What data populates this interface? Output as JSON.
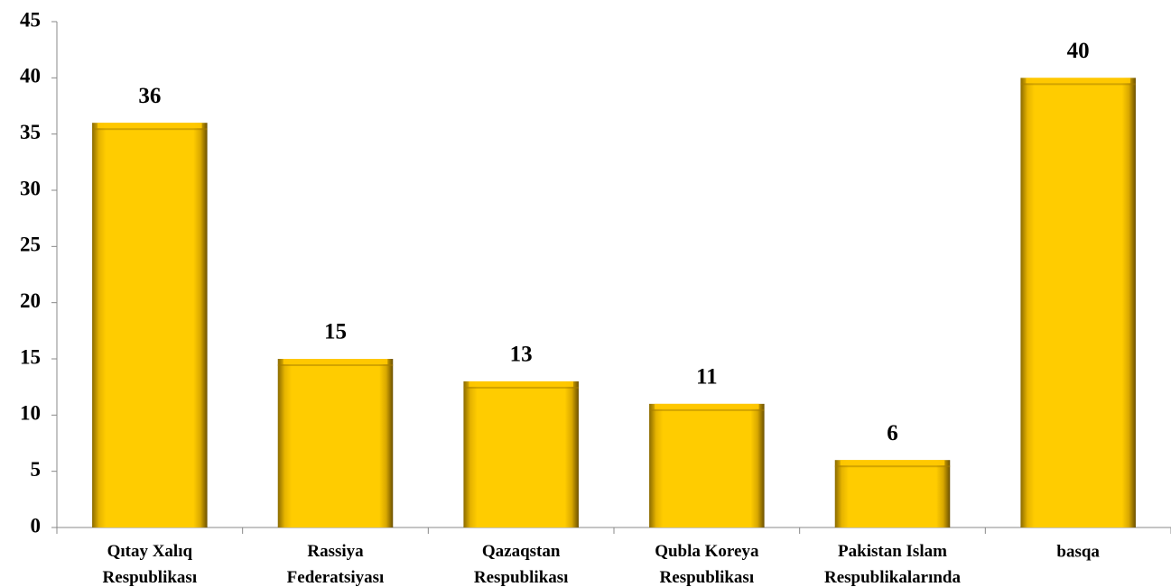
{
  "chart_data": {
    "type": "bar",
    "categories": [
      "Qıtay Xalıq Respublikası",
      "Rassiya Federatsiyası",
      "Qazaqstan Respublikası",
      "Qubla Koreya Respublikası",
      "Pakistan Islam Respublikalarında",
      "basqa"
    ],
    "values": [
      36,
      15,
      13,
      11,
      6,
      40
    ],
    "color": "#ffc800",
    "ylim": [
      0,
      45
    ],
    "yticks": [
      0,
      5,
      10,
      15,
      20,
      25,
      30,
      35,
      40,
      45
    ],
    "grid": false
  }
}
